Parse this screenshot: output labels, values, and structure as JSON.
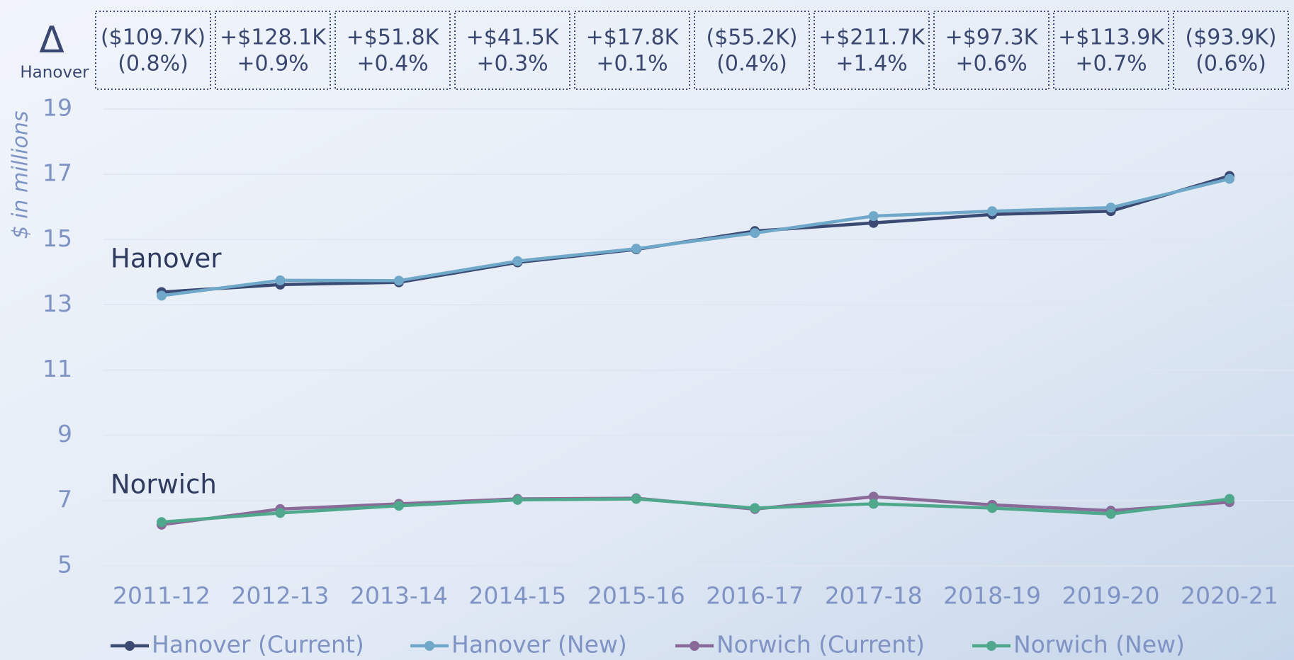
{
  "chart_data": {
    "type": "line",
    "ylabel": "$ in millions",
    "delta_symbol": "Δ",
    "delta_label": "Hanover",
    "deltas": [
      {
        "amount": "($109.7K)",
        "percent": "(0.8%)"
      },
      {
        "amount": "+$128.1K",
        "percent": "+0.9%"
      },
      {
        "amount": "+$51.8K",
        "percent": "+0.4%"
      },
      {
        "amount": "+$41.5K",
        "percent": "+0.3%"
      },
      {
        "amount": "+$17.8K",
        "percent": "+0.1%"
      },
      {
        "amount": "($55.2K)",
        "percent": "(0.4%)"
      },
      {
        "amount": "+$211.7K",
        "percent": "+1.4%"
      },
      {
        "amount": "+$97.3K",
        "percent": "+0.6%"
      },
      {
        "amount": "+$113.9K",
        "percent": "+0.7%"
      },
      {
        "amount": "($93.9K)",
        "percent": "(0.6%)"
      }
    ],
    "group_labels": [
      "Hanover",
      "Norwich"
    ],
    "categories": [
      "2011-12",
      "2012-13",
      "2013-14",
      "2014-15",
      "2015-16",
      "2016-17",
      "2017-18",
      "2018-19",
      "2019-20",
      "2020-21"
    ],
    "series": [
      {
        "name": "Hanover (Current)",
        "color": "#3a4a72",
        "values": [
          13.39,
          13.62,
          13.69,
          14.3,
          14.7,
          15.26,
          15.51,
          15.77,
          15.87,
          16.95
        ]
      },
      {
        "name": "Hanover (New)",
        "color": "#6fa8c8",
        "values": [
          13.28,
          13.75,
          13.74,
          14.34,
          14.72,
          15.2,
          15.72,
          15.87,
          15.98,
          16.86
        ]
      },
      {
        "name": "Norwich (Current)",
        "color": "#8a6a98",
        "values": [
          6.26,
          6.74,
          6.9,
          7.05,
          7.07,
          6.74,
          7.12,
          6.87,
          6.69,
          6.95
        ]
      },
      {
        "name": "Norwich (New)",
        "color": "#4fa88c",
        "values": [
          6.34,
          6.62,
          6.84,
          7.02,
          7.05,
          6.77,
          6.9,
          6.77,
          6.59,
          7.05
        ]
      }
    ],
    "ylim": [
      5,
      19
    ],
    "yticks": [
      5,
      7,
      9,
      11,
      13,
      15,
      17,
      19
    ],
    "grid": true
  }
}
